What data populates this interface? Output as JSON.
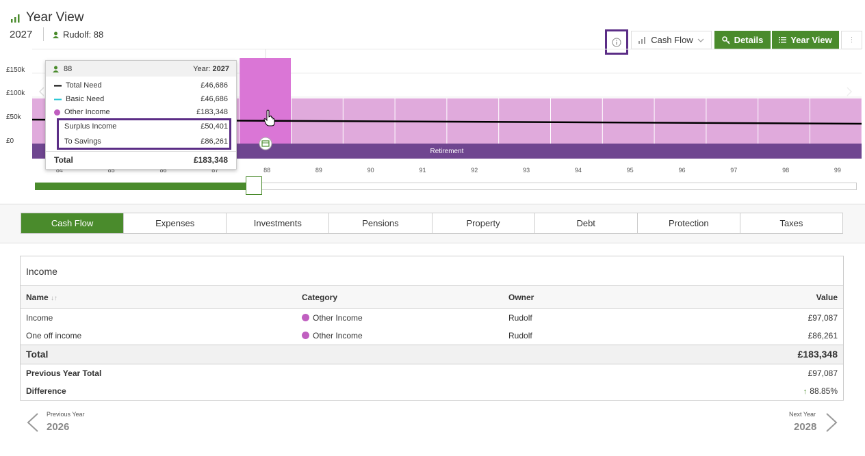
{
  "header": {
    "title": "Year View",
    "year": "2027",
    "person": "Rudolf: 88"
  },
  "toolbar": {
    "cash_flow_label": "Cash Flow",
    "details_label": "Details",
    "year_view_label": "Year View",
    "more_label": "⋮"
  },
  "chart_data": {
    "type": "bar",
    "y_tick_labels": [
      "£150k",
      "£100k",
      "£50k",
      "£0"
    ],
    "x_tick_labels": [
      "84",
      "85",
      "86",
      "87",
      "88",
      "89",
      "90",
      "91",
      "92",
      "93",
      "94",
      "95",
      "96",
      "97",
      "98",
      "99"
    ],
    "highlighted_category": "88",
    "band_label": "Retirement",
    "series": [
      {
        "name": "Other Income",
        "color": "#e0a8e0"
      },
      {
        "name": "Total Need",
        "color": "#000000"
      }
    ]
  },
  "tooltip": {
    "age": "88",
    "year_label": "Year:",
    "year_value": "2027",
    "rows": [
      {
        "label": "Total Need",
        "value": "£46,686"
      },
      {
        "label": "Basic Need",
        "value": "£46,686"
      },
      {
        "label": "Other Income",
        "value": "£183,348"
      },
      {
        "label": "Surplus Income",
        "value": "£50,401"
      },
      {
        "label": "To Savings",
        "value": "£86,261"
      }
    ],
    "total_label": "Total",
    "total_value": "£183,348"
  },
  "tabs": [
    "Cash Flow",
    "Expenses",
    "Investments",
    "Pensions",
    "Property",
    "Debt",
    "Protection",
    "Taxes"
  ],
  "income": {
    "title": "Income",
    "columns": {
      "name": "Name",
      "category": "Category",
      "owner": "Owner",
      "value": "Value"
    },
    "rows": [
      {
        "name": "Income",
        "category": "Other Income",
        "owner": "Rudolf",
        "value": "£97,087"
      },
      {
        "name": "One off income",
        "category": "Other Income",
        "owner": "Rudolf",
        "value": "£86,261"
      }
    ],
    "total_label": "Total",
    "total_value": "£183,348",
    "prev_label": "Previous Year Total",
    "prev_value": "£97,087",
    "diff_label": "Difference",
    "diff_value": "88.85%"
  },
  "nav": {
    "prev_label": "Previous Year",
    "prev_year": "2026",
    "next_label": "Next Year",
    "next_year": "2028"
  }
}
